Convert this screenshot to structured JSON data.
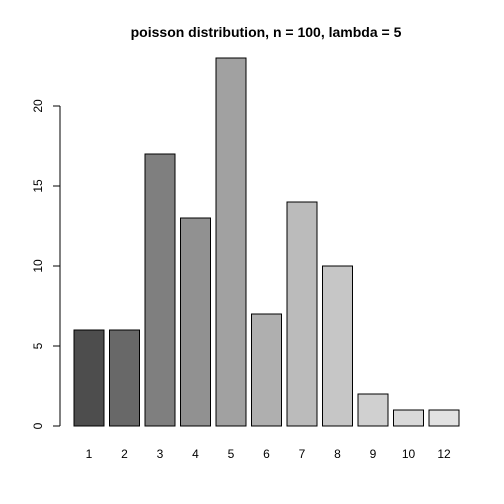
{
  "chart_data": {
    "type": "bar",
    "title": "poisson distribution, n = 100, lambda = 5",
    "xlabel": "",
    "ylabel": "",
    "categories": [
      "1",
      "2",
      "3",
      "4",
      "5",
      "6",
      "7",
      "8",
      "9",
      "10",
      "12"
    ],
    "values": [
      6,
      6,
      17,
      13,
      23,
      7,
      14,
      10,
      2,
      1,
      1
    ],
    "ylim": [
      0,
      24
    ],
    "yticks": [
      "0",
      "5",
      "10",
      "15",
      "20"
    ],
    "grid": false,
    "legend": "none",
    "bar_colors": [
      "#4d4d4d",
      "#686868",
      "#7f7f7f",
      "#919191",
      "#a1a1a1",
      "#afafaf",
      "#bbbbbb",
      "#c6c6c6",
      "#d0d0d0",
      "#d9d9d9",
      "#e2e2e2"
    ]
  }
}
